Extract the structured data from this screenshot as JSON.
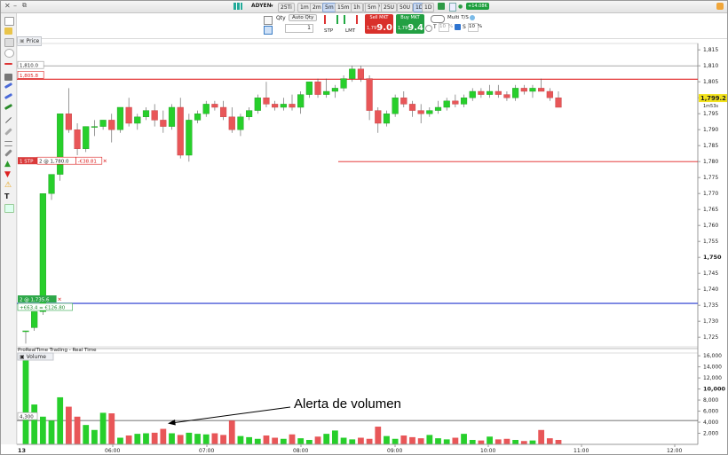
{
  "titlebar": {
    "close_label": "✕",
    "minimize_label": "–",
    "restore_label": "⧉",
    "instrument": "ADYEN",
    "timeframes": [
      "25Ti",
      "1m",
      "2m",
      "5m",
      "15m",
      "1h",
      "D",
      "W"
    ],
    "active_timeframe": "5m",
    "period": "5m",
    "units": [
      "25U",
      "50U",
      "1D"
    ],
    "active_unit": "1D",
    "period2": "1D",
    "badge": "+14.08K"
  },
  "orderbar": {
    "qty_label": "Qty",
    "auto_qty_label": "Auto Qty",
    "qty_value": "1",
    "stp_label": "STP",
    "lmt_label": "LMT",
    "sell": {
      "caption": "Sell MKT",
      "small": "1,79",
      "big": "9.0"
    },
    "buy": {
      "caption": "Buy MKT",
      "small": "1,79",
      "big": "9.4"
    },
    "multi_label": "Multi T/S",
    "t_label": "T",
    "t_value": "10",
    "s_label": "S",
    "s_value": "10",
    "pct": "%"
  },
  "panel": {
    "price_title": "Price",
    "volume_title": "Volume",
    "provider": "ProRealTime Trading - Real Time",
    "date_label": "13"
  },
  "chart_data": {
    "type": "candlestick",
    "price_axis_ticks": [
      "1,815",
      "1,810",
      "1,805",
      "1,800",
      "1,795",
      "1,790",
      "1,785",
      "1,780",
      "1,775",
      "1,770",
      "1,765",
      "1,760",
      "1,755",
      "1,750",
      "1,745",
      "1,740",
      "1,735",
      "1,730",
      "1,725"
    ],
    "price_ylim": [
      1722,
      1817
    ],
    "volume_axis_ticks": [
      "16,000",
      "14,000",
      "12,000",
      "10,000",
      "8,000",
      "6,000",
      "4,000",
      "2,000"
    ],
    "volume_ylim": [
      0,
      16500
    ],
    "time_ticks": [
      "06:00",
      "07:00",
      "08:00",
      "09:00",
      "10:00",
      "11:00",
      "12:00"
    ],
    "current_price": "1,799.2",
    "current_sub": "1m53s",
    "hline_top_label": "1,810.0",
    "alert_line_label": "1,805.8",
    "alert_line_price": 1805.8,
    "hline_top_price": 1810,
    "stop_price": 1780,
    "stop_label": "1 STP",
    "stop_order": "2 @ 1,780.0",
    "stop_pnl": "-€38.81",
    "entry_price": 1735.6,
    "entry_label": "2 @ 1,735.6",
    "entry_pnl": "+€63.4 = €126.80",
    "volume_alert_label": "4,300",
    "volume_alert_value": 4300,
    "candles": [
      [
        1727,
        1727,
        1723,
        1727
      ],
      [
        1728,
        1733,
        1727,
        1733
      ],
      [
        1733,
        1770,
        1732,
        1770
      ],
      [
        1770,
        1776,
        1768,
        1776
      ],
      [
        1776,
        1795,
        1774,
        1795
      ],
      [
        1795,
        1803,
        1789,
        1790
      ],
      [
        1790,
        1792,
        1782,
        1784
      ],
      [
        1784,
        1791,
        1783,
        1791
      ],
      [
        1791,
        1793,
        1788,
        1791
      ],
      [
        1791,
        1793,
        1790,
        1793
      ],
      [
        1793,
        1795,
        1786,
        1790
      ],
      [
        1790,
        1797,
        1789,
        1797
      ],
      [
        1797,
        1800,
        1791,
        1792
      ],
      [
        1792,
        1795,
        1790,
        1794
      ],
      [
        1794,
        1797,
        1793,
        1796
      ],
      [
        1796,
        1798,
        1791,
        1793
      ],
      [
        1793,
        1796,
        1789,
        1791
      ],
      [
        1791,
        1798,
        1790,
        1797
      ],
      [
        1797,
        1800,
        1781,
        1782
      ],
      [
        1782,
        1795,
        1780,
        1793
      ],
      [
        1793,
        1796,
        1792,
        1795
      ],
      [
        1795,
        1799,
        1794,
        1798
      ],
      [
        1798,
        1799,
        1796,
        1797
      ],
      [
        1797,
        1799,
        1793,
        1794
      ],
      [
        1794,
        1797,
        1789,
        1790
      ],
      [
        1790,
        1795,
        1788,
        1794
      ],
      [
        1794,
        1797,
        1793,
        1796
      ],
      [
        1796,
        1801,
        1795,
        1800
      ],
      [
        1800,
        1805,
        1797,
        1798
      ],
      [
        1798,
        1799,
        1796,
        1797
      ],
      [
        1797,
        1800,
        1796,
        1798
      ],
      [
        1798,
        1801,
        1796,
        1797
      ],
      [
        1797,
        1802,
        1795,
        1801
      ],
      [
        1801,
        1805,
        1800,
        1805
      ],
      [
        1805,
        1806,
        1800,
        1801
      ],
      [
        1801,
        1806,
        1800,
        1802
      ],
      [
        1802,
        1804,
        1800,
        1803
      ],
      [
        1803,
        1807,
        1802,
        1806
      ],
      [
        1806,
        1810,
        1805,
        1809
      ],
      [
        1809,
        1810,
        1805,
        1806
      ],
      [
        1806,
        1807,
        1793,
        1796
      ],
      [
        1796,
        1797,
        1789,
        1792
      ],
      [
        1792,
        1796,
        1791,
        1795
      ],
      [
        1795,
        1801,
        1794,
        1800
      ],
      [
        1800,
        1802,
        1797,
        1798
      ],
      [
        1798,
        1799,
        1794,
        1796
      ],
      [
        1796,
        1798,
        1792,
        1795
      ],
      [
        1795,
        1797,
        1794,
        1796
      ],
      [
        1796,
        1799,
        1795,
        1797
      ],
      [
        1797,
        1800,
        1796,
        1799
      ],
      [
        1799,
        1801,
        1797,
        1798
      ],
      [
        1798,
        1801,
        1797,
        1800
      ],
      [
        1800,
        1803,
        1799,
        1802
      ],
      [
        1802,
        1803,
        1800,
        1801
      ],
      [
        1801,
        1804,
        1800,
        1802
      ],
      [
        1802,
        1804,
        1800,
        1801
      ],
      [
        1801,
        1802,
        1799,
        1800
      ],
      [
        1800,
        1804,
        1799,
        1803
      ],
      [
        1803,
        1804,
        1801,
        1802
      ],
      [
        1802,
        1804,
        1800,
        1803
      ],
      [
        1803,
        1806,
        1802,
        1802
      ],
      [
        1802,
        1803,
        1799,
        1800
      ],
      [
        1800,
        1802,
        1797,
        1797
      ]
    ],
    "volume": [
      16200,
      7200,
      5000,
      4300,
      8500,
      6800,
      5000,
      3500,
      2600,
      5700,
      5600,
      1200,
      1600,
      1900,
      2000,
      2100,
      2800,
      2000,
      1700,
      2100,
      1900,
      1800,
      2000,
      1700,
      4300,
      1500,
      1300,
      1000,
      1600,
      1200,
      1000,
      1800,
      1100,
      800,
      1400,
      1900,
      2500,
      1200,
      900,
      1200,
      1000,
      3200,
      1500,
      1000,
      1600,
      1300,
      1100,
      1700,
      1100,
      900,
      1200,
      1900,
      800,
      700,
      1400,
      900,
      1000,
      800,
      600,
      700,
      2600,
      1100,
      800
    ]
  },
  "annotation": {
    "text": "Alerta de volumen"
  },
  "colors": {
    "up": "#27cf2b",
    "down": "#e85658",
    "alert_line": "#e02020",
    "entry_line": "#4a5bd8",
    "stop_line": "#e02020"
  }
}
